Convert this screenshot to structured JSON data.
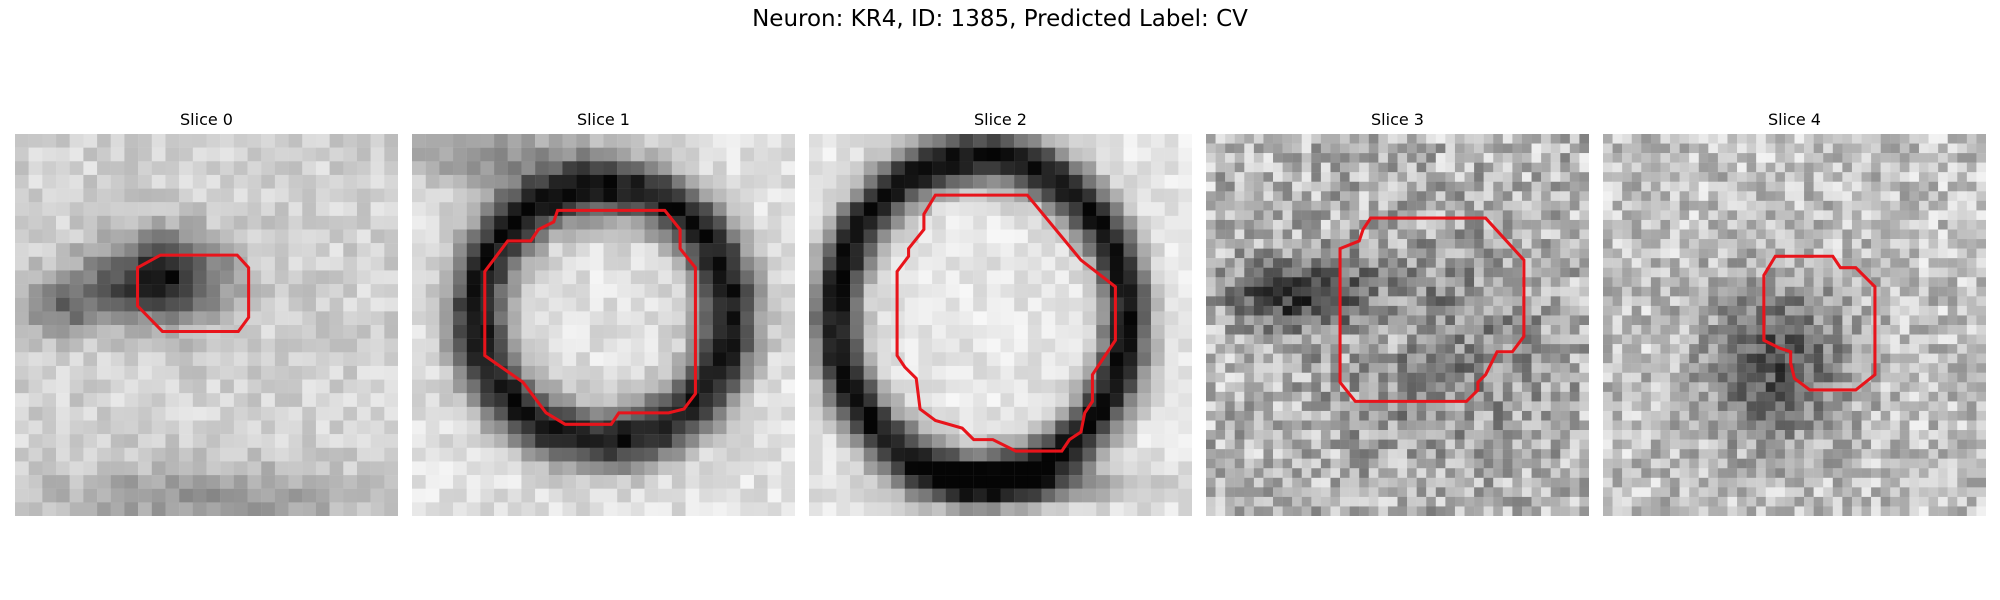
{
  "figure": {
    "title": "Neuron: KR4, ID: 1385, Predicted Label: CV"
  },
  "colors": {
    "contour": "#e8141b",
    "colormap": "grayscale"
  },
  "panels": [
    {
      "title": "Slice 0"
    },
    {
      "title": "Slice 1"
    },
    {
      "title": "Slice 2"
    },
    {
      "title": "Slice 3"
    },
    {
      "title": "Slice 4"
    }
  ]
}
